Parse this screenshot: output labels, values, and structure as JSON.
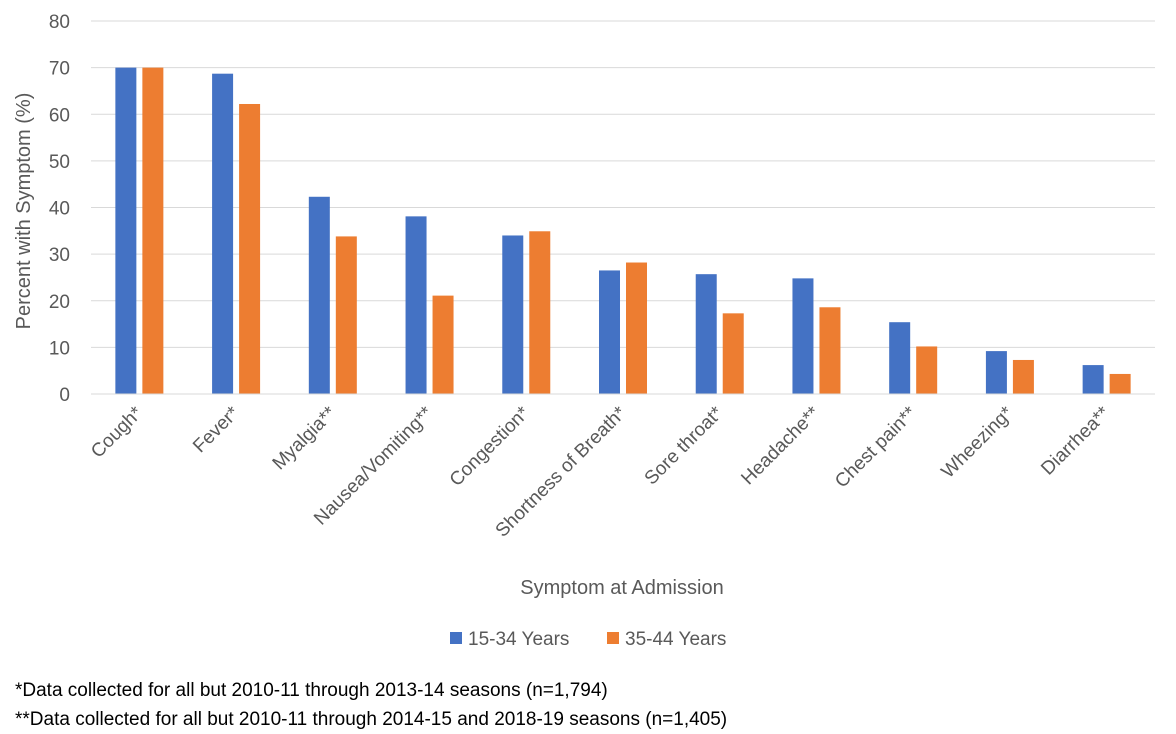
{
  "chart_data": {
    "type": "bar",
    "xlabel": "Symptom at Admission",
    "ylabel": "Percent with Symptom (%)",
    "ylim": [
      0,
      80
    ],
    "yticks": [
      0,
      10,
      20,
      30,
      40,
      50,
      60,
      70,
      80
    ],
    "grid": true,
    "legend_position": "bottom",
    "categories": [
      "Cough*",
      "Fever*",
      "Myalgia**",
      "Nausea/Vomiting**",
      "Congestion*",
      "Shortness of Breath*",
      "Sore throat*",
      "Headache**",
      "Chest pain**",
      "Wheezing*",
      "Diarrhea**"
    ],
    "series": [
      {
        "name": "15-34 Years",
        "color": "#4472C4",
        "values": [
          70,
          68.7,
          42.3,
          38.1,
          34,
          26.5,
          25.7,
          24.8,
          15.4,
          9.2,
          6.2
        ]
      },
      {
        "name": "35-44 Years",
        "color": "#ED7D31",
        "values": [
          70,
          62.2,
          33.8,
          21.1,
          34.9,
          28.2,
          17.3,
          18.6,
          10.2,
          7.3,
          4.3
        ]
      }
    ]
  },
  "footnotes": [
    "*Data collected for all but 2010-11 through 2013-14 seasons (n=1,794)",
    "**Data collected for all but 2010-11 through 2014-15 and 2018-19 seasons (n=1,405)"
  ]
}
